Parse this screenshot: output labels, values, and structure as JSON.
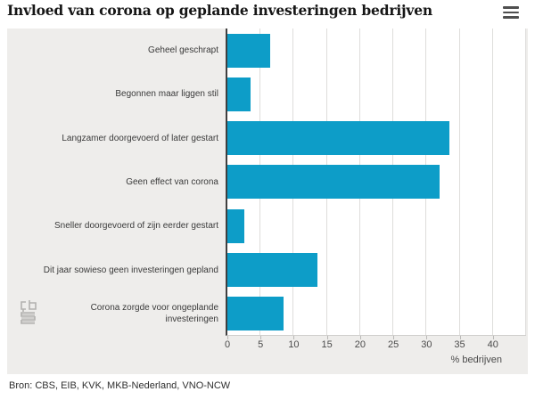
{
  "title": "Invloed van corona op geplande investeringen bedrijven",
  "menu": {
    "label": "Menu"
  },
  "source": "Bron: CBS, EIB, KVK, MKB-Nederland, VNO-NCW",
  "logo": {
    "name": "cbs-logo"
  },
  "colors": {
    "bar": "#0d9dc8",
    "panel": "#eeedeb",
    "plot_bg": "#ffffff",
    "axis": "#3f3f3f",
    "gridline": "#dedddb",
    "title_text": "#161616",
    "label_text": "#3a3a3a",
    "tick_text": "#4a4a4a"
  },
  "chart_data": {
    "type": "bar",
    "orientation": "horizontal",
    "title": "Invloed van corona op geplande investeringen bedrijven",
    "categories": [
      "Geheel geschrapt",
      "Begonnen maar liggen stil",
      "Langzamer doorgevoerd of later gestart",
      "Geen effect van corona",
      "Sneller doorgevoerd of zijn eerder gestart",
      "Dit jaar sowieso geen investeringen gepland",
      "Corona zorgde voor ongeplande\ninvesteringen"
    ],
    "values": [
      6.5,
      3.5,
      33.5,
      32,
      2.5,
      13.5,
      8.5
    ],
    "xlabel": "% bedrijven",
    "xlim": [
      0,
      45
    ],
    "xticks": [
      0,
      5,
      10,
      15,
      20,
      25,
      30,
      35,
      40
    ],
    "grid": true,
    "legend": false
  }
}
